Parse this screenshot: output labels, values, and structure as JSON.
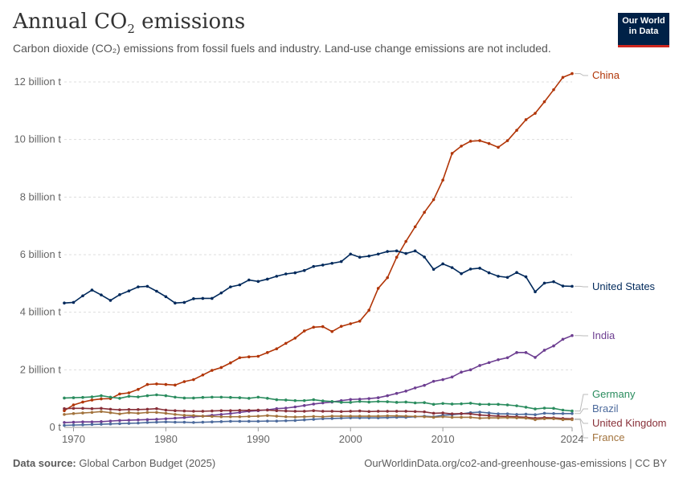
{
  "header": {
    "title_prefix": "Annual CO",
    "title_sub": "2",
    "title_suffix": " emissions",
    "subtitle": "Carbon dioxide (CO₂) emissions from fossil fuels and industry. Land-use change emissions are not included."
  },
  "logo": {
    "line1": "Our World",
    "line2": "in Data",
    "bg_color": "#002147",
    "accent_color": "#ce261e"
  },
  "footer": {
    "source_label": "Data source:",
    "source_value": "Global Carbon Budget (2025)",
    "link": "OurWorldinData.org/co2-and-greenhouse-gas-emissions | CC BY"
  },
  "chart_data": {
    "type": "line",
    "title": "Annual CO₂ emissions",
    "y_unit": "billion tonnes",
    "ylim": [
      0,
      12.5
    ],
    "xlim": [
      1969,
      2024
    ],
    "y_ticks": [
      0,
      2,
      4,
      6,
      8,
      10,
      12
    ],
    "y_tick_labels": [
      "0 t",
      "2 billion t",
      "4 billion t",
      "6 billion t",
      "8 billion t",
      "10 billion t",
      "12 billion t"
    ],
    "x_ticks": [
      1970,
      1980,
      1990,
      2000,
      2010,
      2024
    ],
    "grid": "horizontal dotted",
    "legend": "right, labels at line ends",
    "start_year": 1969,
    "series": [
      {
        "name": "China",
        "color": "#b13507",
        "values": [
          0.58,
          0.78,
          0.88,
          0.95,
          0.99,
          1.0,
          1.16,
          1.2,
          1.32,
          1.49,
          1.51,
          1.49,
          1.47,
          1.59,
          1.66,
          1.82,
          1.98,
          2.08,
          2.24,
          2.42,
          2.45,
          2.47,
          2.6,
          2.73,
          2.92,
          3.1,
          3.35,
          3.48,
          3.5,
          3.33,
          3.51,
          3.6,
          3.69,
          4.07,
          4.83,
          5.2,
          5.91,
          6.46,
          6.97,
          7.47,
          7.91,
          8.59,
          9.52,
          9.77,
          9.94,
          9.96,
          9.86,
          9.73,
          9.96,
          10.32,
          10.69,
          10.91,
          11.31,
          11.73,
          12.16,
          12.29
        ]
      },
      {
        "name": "United States",
        "color": "#00295b",
        "values": [
          4.32,
          4.34,
          4.57,
          4.77,
          4.6,
          4.41,
          4.61,
          4.74,
          4.88,
          4.9,
          4.73,
          4.54,
          4.32,
          4.34,
          4.47,
          4.48,
          4.48,
          4.67,
          4.88,
          4.95,
          5.12,
          5.07,
          5.15,
          5.25,
          5.33,
          5.37,
          5.45,
          5.59,
          5.64,
          5.7,
          5.76,
          6.02,
          5.91,
          5.95,
          6.02,
          6.11,
          6.13,
          6.04,
          6.13,
          5.92,
          5.49,
          5.68,
          5.55,
          5.34,
          5.5,
          5.53,
          5.37,
          5.25,
          5.21,
          5.38,
          5.23,
          4.71,
          5.01,
          5.06,
          4.91,
          4.9
        ]
      },
      {
        "name": "India",
        "color": "#6d3e91",
        "values": [
          0.17,
          0.18,
          0.19,
          0.19,
          0.2,
          0.22,
          0.24,
          0.25,
          0.26,
          0.27,
          0.28,
          0.3,
          0.32,
          0.34,
          0.37,
          0.39,
          0.42,
          0.45,
          0.48,
          0.52,
          0.56,
          0.58,
          0.61,
          0.65,
          0.67,
          0.71,
          0.76,
          0.81,
          0.85,
          0.88,
          0.93,
          0.97,
          0.98,
          1.0,
          1.03,
          1.1,
          1.18,
          1.26,
          1.37,
          1.46,
          1.6,
          1.66,
          1.75,
          1.92,
          2.0,
          2.15,
          2.25,
          2.35,
          2.42,
          2.6,
          2.6,
          2.43,
          2.68,
          2.83,
          3.06,
          3.19
        ]
      },
      {
        "name": "Germany",
        "color": "#2a8c5e",
        "values": [
          1.02,
          1.03,
          1.04,
          1.06,
          1.1,
          1.05,
          1.01,
          1.08,
          1.06,
          1.1,
          1.13,
          1.1,
          1.05,
          1.02,
          1.02,
          1.04,
          1.05,
          1.05,
          1.04,
          1.03,
          1.01,
          1.05,
          1.01,
          0.96,
          0.95,
          0.93,
          0.93,
          0.96,
          0.92,
          0.9,
          0.87,
          0.87,
          0.9,
          0.88,
          0.9,
          0.89,
          0.87,
          0.88,
          0.85,
          0.86,
          0.8,
          0.83,
          0.81,
          0.82,
          0.84,
          0.8,
          0.8,
          0.8,
          0.78,
          0.75,
          0.7,
          0.64,
          0.67,
          0.66,
          0.6,
          0.57
        ]
      },
      {
        "name": "Brazil",
        "color": "#4c6a9c",
        "values": [
          0.07,
          0.08,
          0.09,
          0.1,
          0.11,
          0.12,
          0.13,
          0.14,
          0.15,
          0.17,
          0.18,
          0.19,
          0.18,
          0.18,
          0.17,
          0.18,
          0.19,
          0.2,
          0.21,
          0.21,
          0.21,
          0.21,
          0.22,
          0.22,
          0.23,
          0.24,
          0.26,
          0.28,
          0.3,
          0.31,
          0.32,
          0.33,
          0.33,
          0.33,
          0.33,
          0.34,
          0.35,
          0.35,
          0.37,
          0.39,
          0.37,
          0.42,
          0.44,
          0.47,
          0.51,
          0.53,
          0.5,
          0.47,
          0.47,
          0.45,
          0.46,
          0.44,
          0.49,
          0.48,
          0.48,
          0.48
        ]
      },
      {
        "name": "United Kingdom",
        "color": "#883039",
        "values": [
          0.65,
          0.66,
          0.66,
          0.65,
          0.66,
          0.63,
          0.61,
          0.62,
          0.62,
          0.63,
          0.65,
          0.6,
          0.58,
          0.57,
          0.56,
          0.56,
          0.57,
          0.58,
          0.58,
          0.59,
          0.59,
          0.6,
          0.6,
          0.58,
          0.57,
          0.56,
          0.56,
          0.58,
          0.56,
          0.56,
          0.55,
          0.56,
          0.57,
          0.55,
          0.56,
          0.56,
          0.56,
          0.56,
          0.55,
          0.54,
          0.49,
          0.5,
          0.47,
          0.48,
          0.47,
          0.43,
          0.41,
          0.39,
          0.38,
          0.37,
          0.35,
          0.32,
          0.34,
          0.33,
          0.31,
          0.3
        ]
      },
      {
        "name": "France",
        "color": "#a2733d",
        "values": [
          0.45,
          0.48,
          0.5,
          0.52,
          0.55,
          0.51,
          0.47,
          0.51,
          0.49,
          0.52,
          0.52,
          0.49,
          0.45,
          0.42,
          0.41,
          0.39,
          0.38,
          0.37,
          0.37,
          0.37,
          0.38,
          0.39,
          0.41,
          0.39,
          0.37,
          0.36,
          0.37,
          0.38,
          0.37,
          0.39,
          0.39,
          0.39,
          0.39,
          0.39,
          0.39,
          0.4,
          0.4,
          0.39,
          0.38,
          0.37,
          0.35,
          0.37,
          0.35,
          0.35,
          0.35,
          0.32,
          0.33,
          0.33,
          0.34,
          0.33,
          0.32,
          0.27,
          0.3,
          0.3,
          0.27,
          0.27
        ]
      }
    ]
  }
}
